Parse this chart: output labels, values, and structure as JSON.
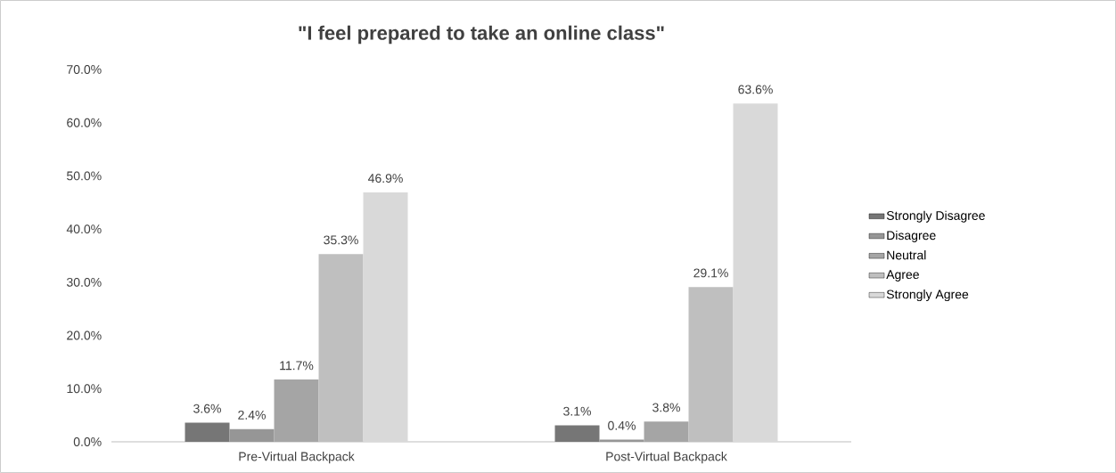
{
  "chart_data": {
    "type": "bar",
    "title": "\"I feel prepared to take an online class\"",
    "categories": [
      "Pre-Virtual Backpack",
      "Post-Virtual Backpack"
    ],
    "series": [
      {
        "name": "Strongly Disagree",
        "color": "#767676",
        "values": [
          3.6,
          3.1
        ],
        "value_labels": [
          "3.6%",
          "3.1%"
        ]
      },
      {
        "name": "Disagree",
        "color": "#969696",
        "values": [
          2.4,
          0.4
        ],
        "value_labels": [
          "2.4%",
          "0.4%"
        ]
      },
      {
        "name": "Neutral",
        "color": "#a5a5a5",
        "values": [
          11.7,
          3.8
        ],
        "value_labels": [
          "11.7%",
          "3.8%"
        ]
      },
      {
        "name": "Agree",
        "color": "#bfbfbf",
        "values": [
          35.3,
          29.1
        ],
        "value_labels": [
          "35.3%",
          "29.1%"
        ]
      },
      {
        "name": "Strongly Agree",
        "color": "#d9d9d9",
        "values": [
          46.9,
          63.6
        ],
        "value_labels": [
          "46.9%",
          "63.6%"
        ]
      }
    ],
    "ylim": [
      0,
      70
    ],
    "yticks": [
      {
        "value": 0,
        "label": "0.0%"
      },
      {
        "value": 10,
        "label": "10.0%"
      },
      {
        "value": 20,
        "label": "20.0%"
      },
      {
        "value": 30,
        "label": "30.0%"
      },
      {
        "value": 40,
        "label": "40.0%"
      },
      {
        "value": 50,
        "label": "50.0%"
      },
      {
        "value": 60,
        "label": "60.0%"
      },
      {
        "value": 70,
        "label": "70.0%"
      }
    ],
    "grid": false,
    "legend": "right"
  }
}
